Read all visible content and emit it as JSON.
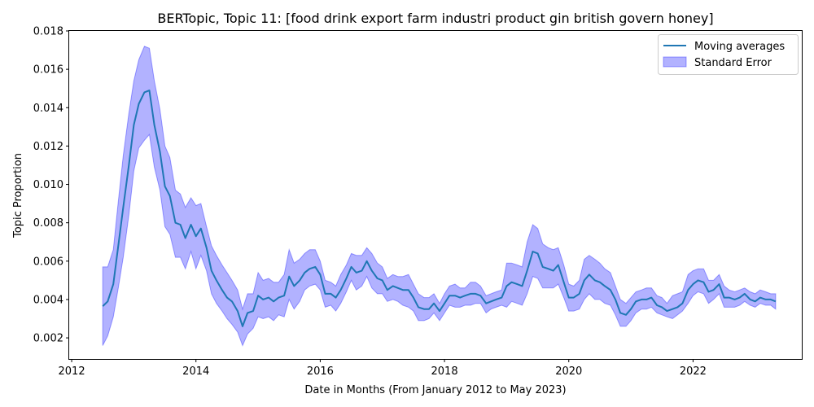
{
  "chart_data": {
    "type": "line",
    "title": "BERTopic, Topic 11: [food drink export farm industri product gin british govern honey]",
    "xlabel": "Date in Months (From January 2012 to May 2023)",
    "ylabel": "Topic Proportion",
    "xlim": [
      2011.96,
      2023.75
    ],
    "ylim": [
      0.0009,
      0.018
    ],
    "x_ticks": [
      2012,
      2014,
      2016,
      2018,
      2020,
      2022
    ],
    "x_tick_labels": [
      "2012",
      "2014",
      "2016",
      "2018",
      "2020",
      "2022"
    ],
    "y_ticks": [
      0.002,
      0.004,
      0.006,
      0.008,
      0.01,
      0.012,
      0.014,
      0.016,
      0.018
    ],
    "y_tick_labels": [
      "0.002",
      "0.004",
      "0.006",
      "0.008",
      "0.010",
      "0.012",
      "0.014",
      "0.016",
      "0.018"
    ],
    "legend": {
      "position": "upper-right",
      "entries": [
        "Moving averages",
        "Standard Error"
      ]
    },
    "grid": false,
    "colors": {
      "line": "#1f77b4",
      "band": "#0000ff",
      "band_opacity": 0.3
    },
    "x": [
      2012.5,
      2012.58,
      2012.67,
      2012.75,
      2012.83,
      2012.92,
      2013.0,
      2013.08,
      2013.17,
      2013.25,
      2013.33,
      2013.42,
      2013.5,
      2013.58,
      2013.67,
      2013.75,
      2013.83,
      2013.92,
      2014.0,
      2014.08,
      2014.17,
      2014.25,
      2014.33,
      2014.42,
      2014.5,
      2014.58,
      2014.67,
      2014.75,
      2014.83,
      2014.92,
      2015.0,
      2015.08,
      2015.17,
      2015.25,
      2015.33,
      2015.42,
      2015.5,
      2015.58,
      2015.67,
      2015.75,
      2015.83,
      2015.92,
      2016.0,
      2016.08,
      2016.17,
      2016.25,
      2016.33,
      2016.42,
      2016.5,
      2016.58,
      2016.67,
      2016.75,
      2016.83,
      2016.92,
      2017.0,
      2017.08,
      2017.17,
      2017.25,
      2017.33,
      2017.42,
      2017.5,
      2017.58,
      2017.67,
      2017.75,
      2017.83,
      2017.92,
      2018.0,
      2018.08,
      2018.17,
      2018.25,
      2018.33,
      2018.42,
      2018.5,
      2018.58,
      2018.67,
      2018.75,
      2018.83,
      2018.92,
      2019.0,
      2019.08,
      2019.17,
      2019.25,
      2019.33,
      2019.42,
      2019.5,
      2019.58,
      2019.67,
      2019.75,
      2019.83,
      2019.92,
      2020.0,
      2020.08,
      2020.17,
      2020.25,
      2020.33,
      2020.42,
      2020.5,
      2020.58,
      2020.67,
      2020.75,
      2020.83,
      2020.92,
      2021.0,
      2021.08,
      2021.17,
      2021.25,
      2021.33,
      2021.42,
      2021.5,
      2021.58,
      2021.67,
      2021.75,
      2021.83,
      2021.92,
      2022.0,
      2022.08,
      2022.17,
      2022.25,
      2022.33,
      2022.42,
      2022.5,
      2022.58,
      2022.67,
      2022.75,
      2022.83,
      2022.92,
      2023.0,
      2023.08,
      2023.17,
      2023.25,
      2023.33
    ],
    "series": [
      {
        "name": "Moving averages",
        "values": [
          0.00365,
          0.0039,
          0.0048,
          0.0068,
          0.0088,
          0.011,
          0.0131,
          0.0142,
          0.0148,
          0.0149,
          0.0131,
          0.0117,
          0.0099,
          0.0094,
          0.008,
          0.0079,
          0.0072,
          0.0079,
          0.0073,
          0.0077,
          0.0067,
          0.0055,
          0.005,
          0.0045,
          0.0041,
          0.0039,
          0.0034,
          0.0026,
          0.0033,
          0.0034,
          0.0042,
          0.004,
          0.0041,
          0.0039,
          0.0041,
          0.0042,
          0.0052,
          0.0047,
          0.005,
          0.0054,
          0.0056,
          0.0057,
          0.0053,
          0.0043,
          0.0043,
          0.0041,
          0.0045,
          0.0051,
          0.0057,
          0.0054,
          0.0055,
          0.006,
          0.0055,
          0.0051,
          0.005,
          0.0045,
          0.0047,
          0.0046,
          0.0045,
          0.0045,
          0.0041,
          0.0036,
          0.0035,
          0.0035,
          0.0038,
          0.0034,
          0.0038,
          0.0042,
          0.0042,
          0.0041,
          0.0042,
          0.0043,
          0.0043,
          0.0042,
          0.0038,
          0.0039,
          0.004,
          0.0041,
          0.0047,
          0.0049,
          0.0048,
          0.0047,
          0.0055,
          0.0065,
          0.0064,
          0.0057,
          0.0056,
          0.0055,
          0.0058,
          0.0049,
          0.0041,
          0.0041,
          0.0043,
          0.005,
          0.0053,
          0.005,
          0.0049,
          0.0047,
          0.0045,
          0.004,
          0.0033,
          0.0032,
          0.0035,
          0.0039,
          0.004,
          0.004,
          0.0041,
          0.0037,
          0.0036,
          0.0034,
          0.0035,
          0.0036,
          0.0038,
          0.0045,
          0.0048,
          0.005,
          0.0049,
          0.0044,
          0.0045,
          0.0048,
          0.0041,
          0.0041,
          0.004,
          0.0041,
          0.0043,
          0.004,
          0.0039,
          0.0041,
          0.004,
          0.004,
          0.0039
        ]
      },
      {
        "name": "Standard Error",
        "lower": [
          0.0016,
          0.0021,
          0.0031,
          0.0046,
          0.0062,
          0.0084,
          0.0107,
          0.0119,
          0.0123,
          0.0126,
          0.0109,
          0.0097,
          0.0078,
          0.0074,
          0.0062,
          0.0062,
          0.0056,
          0.0065,
          0.0056,
          0.0063,
          0.0055,
          0.0043,
          0.0038,
          0.0034,
          0.003,
          0.0027,
          0.0023,
          0.0016,
          0.0022,
          0.0025,
          0.0031,
          0.003,
          0.0031,
          0.0029,
          0.0032,
          0.0031,
          0.004,
          0.0035,
          0.0039,
          0.0045,
          0.0047,
          0.0048,
          0.0045,
          0.0036,
          0.0037,
          0.0034,
          0.0038,
          0.0044,
          0.005,
          0.0045,
          0.0047,
          0.0052,
          0.0046,
          0.0043,
          0.0043,
          0.0039,
          0.004,
          0.0039,
          0.0037,
          0.0036,
          0.0034,
          0.0029,
          0.0029,
          0.003,
          0.0033,
          0.0029,
          0.0033,
          0.0037,
          0.0036,
          0.0036,
          0.0037,
          0.0037,
          0.0038,
          0.0038,
          0.0033,
          0.0035,
          0.0036,
          0.0037,
          0.0036,
          0.0039,
          0.0038,
          0.0037,
          0.0043,
          0.0052,
          0.0051,
          0.0046,
          0.0046,
          0.0046,
          0.0048,
          0.0041,
          0.0034,
          0.0034,
          0.0035,
          0.004,
          0.0043,
          0.004,
          0.004,
          0.0038,
          0.0037,
          0.0032,
          0.0026,
          0.0026,
          0.0029,
          0.0033,
          0.0035,
          0.0035,
          0.0036,
          0.0033,
          0.0032,
          0.0031,
          0.003,
          0.0032,
          0.0034,
          0.0038,
          0.0042,
          0.0044,
          0.0043,
          0.0038,
          0.004,
          0.0043,
          0.0036,
          0.0036,
          0.0036,
          0.0037,
          0.0039,
          0.0037,
          0.0036,
          0.0038,
          0.0037,
          0.0037,
          0.0035
        ],
        "upper": [
          0.0057,
          0.0057,
          0.0066,
          0.0091,
          0.0115,
          0.0137,
          0.0154,
          0.0165,
          0.0172,
          0.0171,
          0.0154,
          0.0139,
          0.012,
          0.0114,
          0.0097,
          0.0095,
          0.0088,
          0.0093,
          0.0089,
          0.009,
          0.0078,
          0.0068,
          0.0063,
          0.0058,
          0.0054,
          0.005,
          0.0045,
          0.0035,
          0.0043,
          0.0043,
          0.0054,
          0.005,
          0.0051,
          0.0049,
          0.0049,
          0.0053,
          0.0066,
          0.0059,
          0.0061,
          0.0064,
          0.0066,
          0.0066,
          0.006,
          0.005,
          0.0049,
          0.0047,
          0.0053,
          0.0058,
          0.0064,
          0.0063,
          0.0063,
          0.0067,
          0.0064,
          0.0059,
          0.0057,
          0.0051,
          0.0053,
          0.0052,
          0.0052,
          0.0053,
          0.0048,
          0.0043,
          0.0041,
          0.0041,
          0.0043,
          0.0038,
          0.0043,
          0.0047,
          0.0048,
          0.0046,
          0.0046,
          0.0049,
          0.0049,
          0.0047,
          0.0042,
          0.0043,
          0.0044,
          0.0045,
          0.0059,
          0.0059,
          0.0058,
          0.0057,
          0.007,
          0.0079,
          0.0077,
          0.0069,
          0.0067,
          0.0066,
          0.0067,
          0.0058,
          0.0048,
          0.0047,
          0.005,
          0.0061,
          0.0063,
          0.0061,
          0.0059,
          0.0056,
          0.0054,
          0.0047,
          0.004,
          0.0038,
          0.0041,
          0.0044,
          0.0045,
          0.0046,
          0.0046,
          0.0042,
          0.0041,
          0.0038,
          0.0042,
          0.0043,
          0.0044,
          0.0053,
          0.0055,
          0.0056,
          0.0056,
          0.005,
          0.005,
          0.0053,
          0.0047,
          0.0045,
          0.0044,
          0.0045,
          0.0046,
          0.0044,
          0.0043,
          0.0045,
          0.0044,
          0.0043,
          0.0043
        ]
      }
    ]
  }
}
